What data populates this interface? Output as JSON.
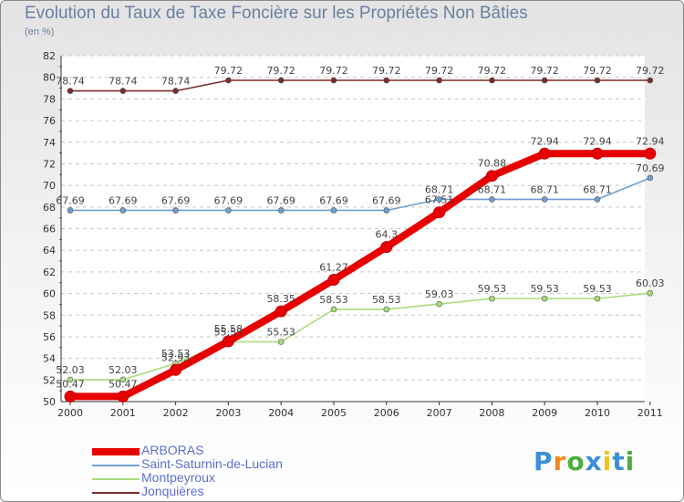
{
  "chart_data": {
    "type": "line",
    "title": "Evolution du Taux de Taxe Foncière sur les Propriétés Non Bâties",
    "unit_label": "(en %)",
    "xlabel": "",
    "ylabel": "",
    "x": [
      "2000",
      "2001",
      "2002",
      "2003",
      "2004",
      "2005",
      "2006",
      "2007",
      "2008",
      "2009",
      "2010",
      "2011"
    ],
    "ylim": [
      50,
      82
    ],
    "ytick_step": 2,
    "grid": "horizontal dashed",
    "series": [
      {
        "name": "Jonquières",
        "color": "#7b2c2c",
        "values": [
          78.74,
          78.74,
          78.74,
          79.72,
          79.72,
          79.72,
          79.72,
          79.72,
          79.72,
          79.72,
          79.72,
          79.72
        ],
        "labels": [
          "78.74",
          "78.74",
          "78.74",
          "79.72",
          "79.72",
          "79.72",
          "79.72",
          "79.72",
          "79.72",
          "79.72",
          "79.72",
          "79.72"
        ]
      },
      {
        "name": "Saint-Saturnin-de-Lucian",
        "color": "#6f9fd0",
        "values": [
          67.69,
          67.69,
          67.69,
          67.69,
          67.69,
          67.69,
          67.69,
          68.71,
          68.71,
          68.71,
          68.71,
          70.69
        ],
        "labels": [
          "67.69",
          "67.69",
          "67.69",
          "67.69",
          "67.69",
          "67.69",
          "67.69",
          "68.71",
          "68.71",
          "68.71",
          "68.71",
          "70.69"
        ]
      },
      {
        "name": "Montpeyroux",
        "color": "#a8dc7c",
        "values": [
          52.03,
          52.03,
          53.53,
          55.53,
          55.53,
          58.53,
          58.53,
          59.03,
          59.53,
          59.53,
          59.53,
          60.03
        ],
        "labels": [
          "52.03",
          "52.03",
          "53.53",
          "55.53",
          "55.53",
          "58.53",
          "58.53",
          "59.03",
          "59.53",
          "59.53",
          "59.53",
          "60.03"
        ]
      },
      {
        "name": "ARBORAS",
        "color": "#e80000",
        "values": [
          50.47,
          50.47,
          52.93,
          55.58,
          58.35,
          61.27,
          64.3,
          67.51,
          70.88,
          72.94,
          72.94,
          72.94
        ],
        "labels": [
          "50.47",
          "50.47",
          "52.93",
          "55.58",
          "58.35",
          "61.27",
          "64.3",
          "67.51",
          "70.88",
          "72.94",
          "72.94",
          "72.94"
        ]
      }
    ],
    "legend": [
      "ARBORAS",
      "Saint-Saturnin-de-Lucian",
      "Montpeyroux",
      "Jonquières"
    ],
    "legend_position": "bottom-left"
  },
  "brand": {
    "letters": [
      "P",
      "r",
      "o",
      "x",
      "i",
      "t",
      "i"
    ],
    "colors": [
      "#3b8fd6",
      "#f08a1c",
      "#4cae3c",
      "#3b8fd6",
      "#f0c21c",
      "#3b8fd6",
      "#4cae3c"
    ]
  }
}
